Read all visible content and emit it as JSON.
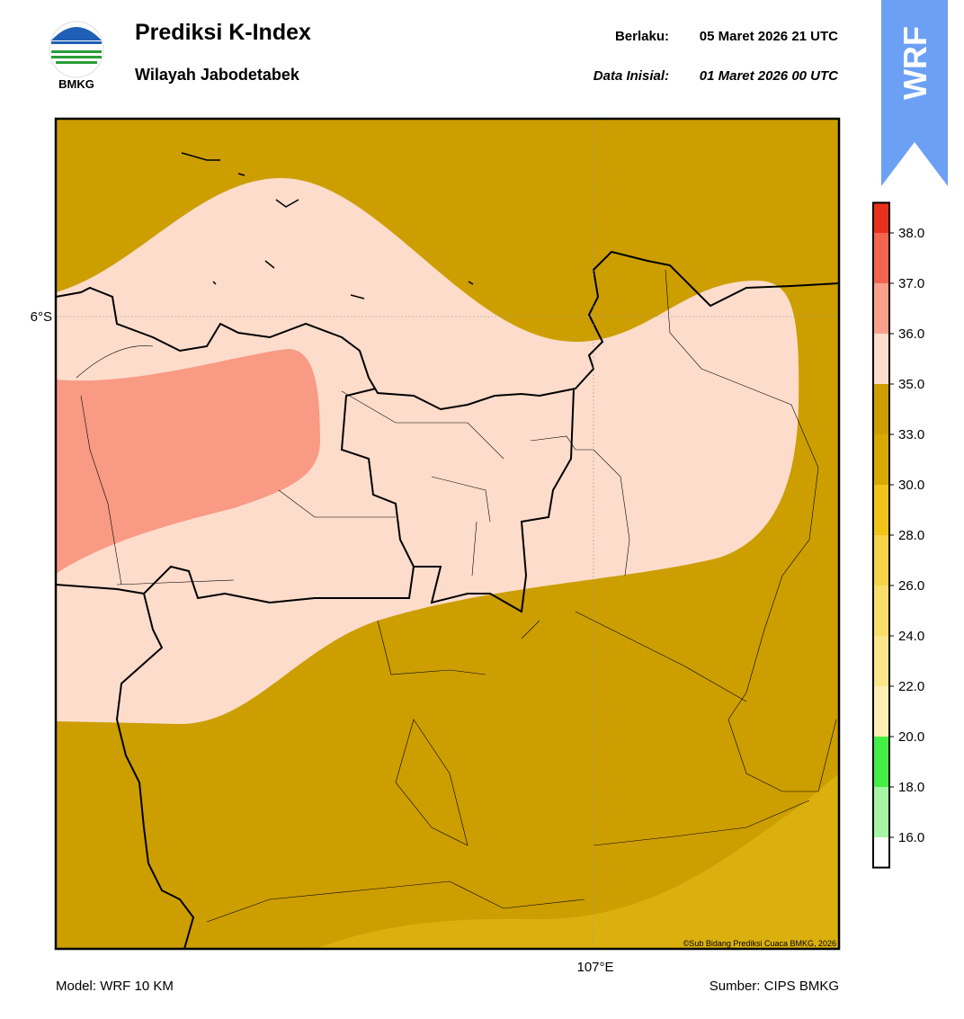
{
  "header": {
    "logo": "BMKG",
    "title": "Prediksi K-Index",
    "subtitle": "Wilayah Jabodetabek",
    "valid_label": "Berlaku:",
    "valid_time": "05 Maret 2026 21 UTC",
    "init_label": "Data Inisial:",
    "init_time": "01 Maret 2026 00 UTC",
    "badge": "WRF"
  },
  "map": {
    "lat_label": "6°S",
    "lon_label": "107°E",
    "credit": "©Sub Bidang Prediksi Cuaca BMKG, 2026"
  },
  "colorbar": {
    "colors": [
      "#ffffff",
      "#a6f5a6",
      "#44ee44",
      "#fdf0b4",
      "#fbe68c",
      "#f9de6a",
      "#f6d34a",
      "#f0c419",
      "#d8a900",
      "#cc9e00",
      "#fddccb",
      "#f9a08c",
      "#f26450",
      "#e8301e"
    ],
    "ticks": [
      {
        "value": 16,
        "label": "16.0"
      },
      {
        "value": 18,
        "label": "18.0"
      },
      {
        "value": 20,
        "label": "20.0"
      },
      {
        "value": 22,
        "label": "22.0"
      },
      {
        "value": 24,
        "label": "24.0"
      },
      {
        "value": 26,
        "label": "26.0"
      },
      {
        "value": 28,
        "label": "28.0"
      },
      {
        "value": 30,
        "label": "30.0"
      },
      {
        "value": 33,
        "label": "33.0"
      },
      {
        "value": 35,
        "label": "35.0"
      },
      {
        "value": 36,
        "label": "36.0"
      },
      {
        "value": 37,
        "label": "37.0"
      },
      {
        "value": 38,
        "label": "38.0"
      }
    ]
  },
  "footer": {
    "model": "Model: WRF 10 KM",
    "source": "Sumber: CIPS BMKG"
  }
}
